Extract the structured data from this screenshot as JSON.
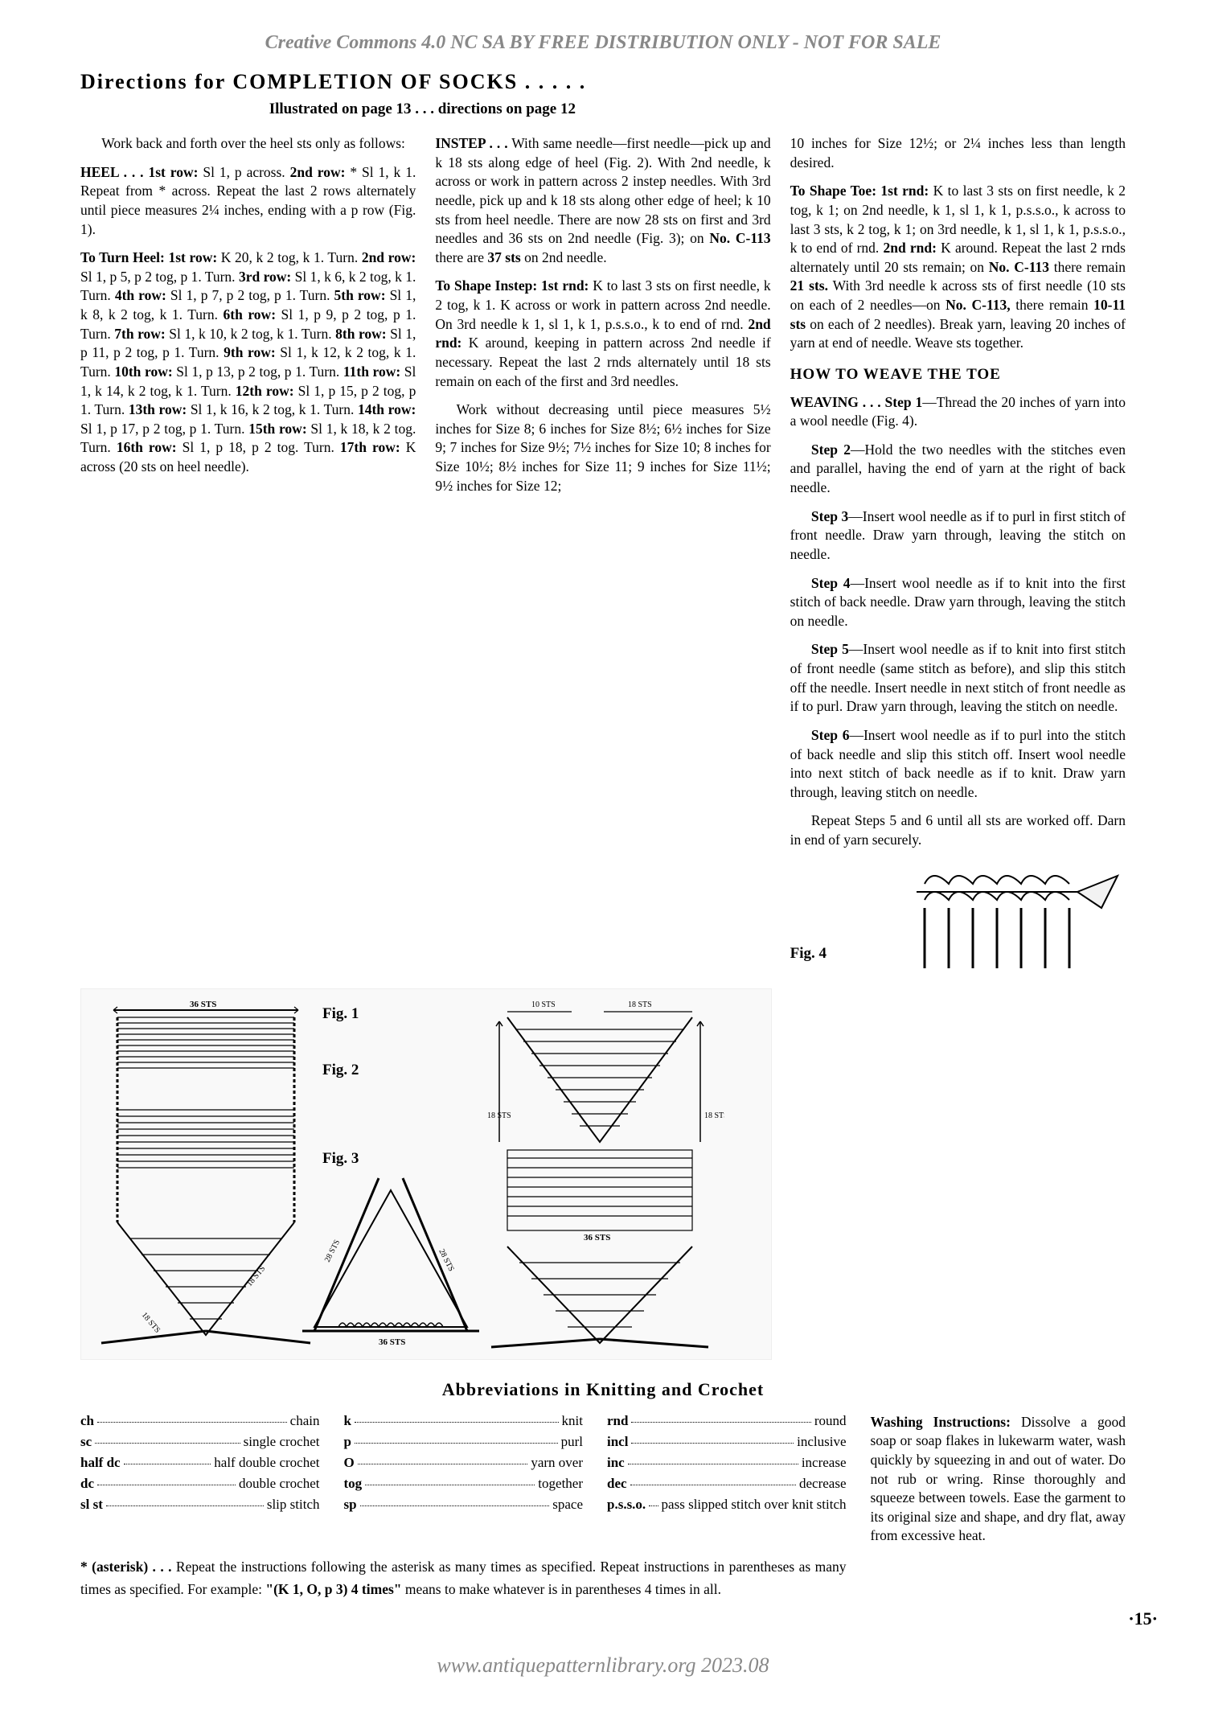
{
  "watermark_top": "Creative Commons 4.0 NC SA BY FREE DISTRIBUTION ONLY - NOT FOR SALE",
  "watermark_bottom": "www.antiquepatternlibrary.org 2023.08",
  "page_number": "·15·",
  "title": "Directions for COMPLETION OF SOCKS . . . . .",
  "subtitle": "Illustrated on page 13 . . . directions on page 12",
  "col1": {
    "p1": "Work back and forth over the heel sts only as follows:",
    "p2_html": "<b>HEEL . . . 1st row:</b> Sl 1, p across. <b>2nd row:</b> * Sl 1, k 1. Repeat from * across. Repeat the last 2 rows alternately until piece measures 2¼ inches, ending with a p row (Fig. 1).",
    "p3_html": "<b>To Turn Heel: 1st row:</b> K 20, k 2 tog, k 1. Turn. <b>2nd row:</b> Sl 1, p 5, p 2 tog, p 1. Turn. <b>3rd row:</b> Sl 1, k 6, k 2 tog, k 1. Turn. <b>4th row:</b> Sl 1, p 7, p 2 tog, p 1. Turn. <b>5th row:</b> Sl 1, k 8, k 2 tog, k 1. Turn. <b>6th row:</b> Sl 1, p 9, p 2 tog, p 1. Turn. <b>7th row:</b> Sl 1, k 10, k 2 tog, k 1. Turn. <b>8th row:</b> Sl 1, p 11, p 2 tog, p 1. Turn. <b>9th row:</b> Sl 1, k 12, k 2 tog, k 1. Turn. <b>10th row:</b> Sl 1, p 13, p 2 tog, p 1. Turn. <b>11th row:</b> Sl 1, k 14, k 2 tog, k 1. Turn. <b>12th row:</b> Sl 1, p 15, p 2 tog, p 1. Turn. <b>13th row:</b> Sl 1, k 16, k 2 tog, k 1. Turn. <b>14th row:</b> Sl 1, p 17, p 2 tog, p 1. Turn. <b>15th row:</b> Sl 1, k 18, k 2 tog. Turn. <b>16th row:</b> Sl 1, p 18, p 2 tog. Turn. <b>17th row:</b> K across (20 sts on heel needle)."
  },
  "col2": {
    "p1_html": "<b>INSTEP . . .</b> With same needle—first needle—pick up and k 18 sts along edge of heel (Fig. 2). With 2nd needle, k across or work in pattern across 2 instep needles. With 3rd needle, pick up and k 18 sts along other edge of heel; k 10 sts from heel needle. There are now 28 sts on first and 3rd needles and 36 sts on 2nd needle (Fig. 3); on <b>No. C-113</b> there are <b>37 sts</b> on 2nd needle.",
    "p2_html": "<b>To Shape Instep: 1st rnd:</b> K to last 3 sts on first needle, k 2 tog, k 1. K across or work in pattern across 2nd needle. On 3rd needle k 1, sl 1, k 1, p.s.s.o., k to end of rnd. <b>2nd rnd:</b> K around, keeping in pattern across 2nd needle if necessary. Repeat the last 2 rnds alternately until 18 sts remain on each of the first and 3rd needles.",
    "p3_html": "Work without decreasing until piece measures 5½ inches for Size 8; 6 inches for Size 8½; 6½ inches for Size 9; 7 inches for Size 9½; 7½ inches for Size 10; 8 inches for Size 10½; 8½ inches for Size 11; 9 inches for Size 11½; 9½ inches for Size 12;"
  },
  "col3": {
    "p1_html": "10 inches for Size 12½; or 2¼ inches less than length desired.",
    "p2_html": "<b>To Shape Toe: 1st rnd:</b> K to last 3 sts on first needle, k 2 tog, k 1; on 2nd needle, k 1, sl 1, k 1, p.s.s.o., k across to last 3 sts, k 2 tog, k 1; on 3rd needle, k 1, sl 1, k 1, p.s.s.o., k to end of rnd. <b>2nd rnd:</b> K around. Repeat the last 2 rnds alternately until 20 sts remain; on <b>No. C-113</b> there remain <b>21 sts.</b> With 3rd needle k across sts of first needle (10 sts on each of 2 needles—on <b>No. C-113,</b> there remain <b>10-11 sts</b> on each of 2 needles). Break yarn, leaving 20 inches of yarn at end of needle. Weave sts together.",
    "h1": "HOW TO WEAVE THE TOE",
    "p3_html": "<b>WEAVING . . . Step 1</b>—Thread the 20 inches of yarn into a wool needle (Fig. 4).",
    "p4_html": "<b>Step 2</b>—Hold the two needles with the stitches even and parallel, having the end of yarn at the right of back needle.",
    "p5_html": "<b>Step 3</b>—Insert wool needle as if to purl in first stitch of front needle. Draw yarn through, leaving the stitch on needle.",
    "p6_html": "<b>Step 4</b>—Insert wool needle as if to knit into the first stitch of back needle. Draw yarn through, leaving the stitch on needle.",
    "p7_html": "<b>Step 5</b>—Insert wool needle as if to knit into first stitch of front needle (same stitch as before), and slip this stitch off the needle. Insert needle in next stitch of front needle as if to purl. Draw yarn through, leaving the stitch on needle.",
    "p8_html": "<b>Step 6</b>—Insert wool needle as if to purl into the stitch of back needle and slip this stitch off. Insert wool needle into next stitch of back needle as if to knit. Draw yarn through, leaving stitch on needle.",
    "p9_html": "Repeat Steps 5 and 6 until all sts are worked off. Darn in end of yarn securely."
  },
  "figures": {
    "fig1": "Fig. 1",
    "fig2": "Fig. 2",
    "fig3": "Fig. 3",
    "fig4": "Fig. 4",
    "label_36sts": "36 STS",
    "label_18sts": "18 STS",
    "label_10sts": "10 STS",
    "label_28sts": "28 STS"
  },
  "abbrev_title": "Abbreviations in Knitting and Crochet",
  "abbreviations": {
    "col1": [
      {
        "abbr": "ch",
        "def": "chain"
      },
      {
        "abbr": "sc",
        "def": "single crochet"
      },
      {
        "abbr": "half dc",
        "def": "half double crochet"
      },
      {
        "abbr": "dc",
        "def": "double crochet"
      },
      {
        "abbr": "sl st",
        "def": "slip stitch"
      }
    ],
    "col2": [
      {
        "abbr": "k",
        "def": "knit"
      },
      {
        "abbr": "p",
        "def": "purl"
      },
      {
        "abbr": "O",
        "def": "yarn over"
      },
      {
        "abbr": "tog",
        "def": "together"
      },
      {
        "abbr": "sp",
        "def": "space"
      }
    ],
    "col3": [
      {
        "abbr": "rnd",
        "def": "round"
      },
      {
        "abbr": "incl",
        "def": "inclusive"
      },
      {
        "abbr": "inc",
        "def": "increase"
      },
      {
        "abbr": "dec",
        "def": "decrease"
      },
      {
        "abbr": "p.s.s.o.",
        "def": "pass slipped stitch over knit stitch"
      }
    ]
  },
  "asterisk_note_html": "<b>* (asterisk) . . .</b> Repeat the instructions following the asterisk as many times as specified. Repeat instructions in parentheses as many times as specified. For example: <b>\"(K 1, O, p 3) 4 times\"</b> means to make whatever is in parentheses 4 times in all.",
  "washing_html": "<b>Washing Instructions:</b> Dissolve a good soap or soap flakes in lukewarm water, wash quickly by squeezing in and out of water. Do not rub or wring. Rinse thoroughly and squeeze between towels. Ease the garment to its original size and shape, and dry flat, away from excessive heat."
}
